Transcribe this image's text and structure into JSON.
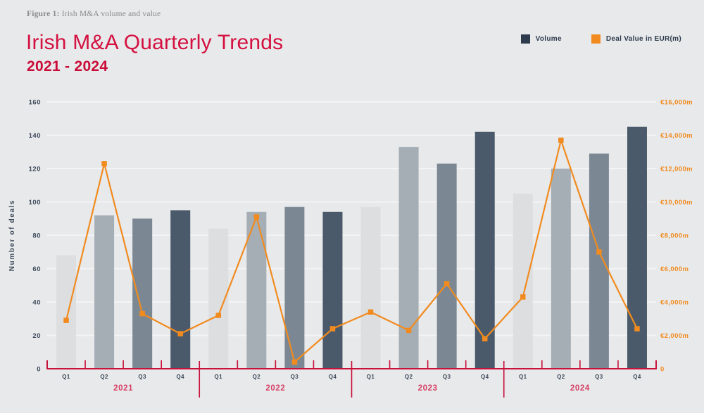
{
  "figure_caption": {
    "label": "Figure 1:",
    "text": " Irish M&A volume and value"
  },
  "header": {
    "title": "Irish M&A Quarterly Trends",
    "subtitle": "2021 - 2024"
  },
  "legend": {
    "items": [
      {
        "label": "Volume",
        "color": "#2d3b4d"
      },
      {
        "label": "Deal Value in EUR(m)",
        "color": "#f18b1f"
      }
    ]
  },
  "colors": {
    "background": "#e8e9eb",
    "gridline": "#f3f4f5",
    "axis_red": "#c8123c",
    "year_label": "#d63c62",
    "navy_text": "#3e4b5a",
    "orange": "#f18b1f",
    "bar_q1": "#dcdee0",
    "bar_q2": "#a6aeb5",
    "bar_q3": "#7b8893",
    "bar_q4": "#4b5a6a"
  },
  "chart_data": {
    "type": "bar",
    "subtype": "combo-bar-line",
    "title": "Irish M&A Quarterly Trends 2021 - 2024",
    "years": [
      "2021",
      "2022",
      "2023",
      "2024"
    ],
    "categories": [
      "Q1",
      "Q2",
      "Q3",
      "Q4",
      "Q1",
      "Q2",
      "Q3",
      "Q4",
      "Q1",
      "Q2",
      "Q3",
      "Q4",
      "Q1",
      "Q2",
      "Q3",
      "Q4"
    ],
    "series": [
      {
        "name": "Volume",
        "type": "bar",
        "axis": "left",
        "values": [
          68,
          92,
          90,
          95,
          84,
          94,
          97,
          94,
          97,
          133,
          123,
          142,
          105,
          120,
          129,
          145
        ]
      },
      {
        "name": "Deal Value in EUR(m)",
        "type": "line",
        "axis": "right",
        "values": [
          2900,
          12300,
          3300,
          2100,
          3200,
          9100,
          400,
          2400,
          3400,
          2300,
          5100,
          1800,
          4300,
          13700,
          7000,
          2400
        ]
      }
    ],
    "left_axis": {
      "label": "Number of deals",
      "min": 0,
      "max": 160,
      "step": 20,
      "tick_labels": [
        "0",
        "20",
        "40",
        "60",
        "80",
        "100",
        "120",
        "140",
        "160"
      ]
    },
    "right_axis": {
      "min": 0,
      "max": 16000,
      "step": 2000,
      "tick_labels": [
        "0",
        "€2,000m",
        "€4,000m",
        "€6,000m",
        "€8,000m",
        "€10,000m",
        "€12,000m",
        "€14,000m",
        "€16,000m"
      ]
    },
    "grid": true,
    "legend_position": "top-right",
    "bar_colors_by_quarter": [
      "#dcdee0",
      "#a6aeb5",
      "#7b8893",
      "#4b5a6a"
    ]
  }
}
